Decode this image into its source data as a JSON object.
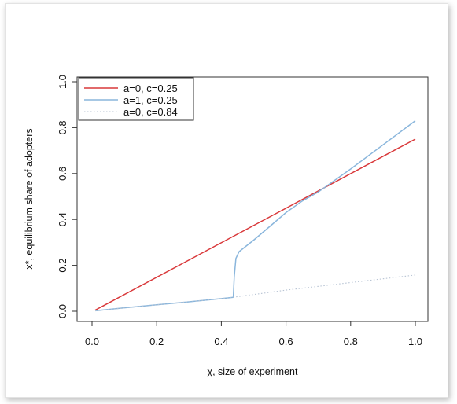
{
  "chart_data": {
    "type": "line",
    "title": "",
    "xlabel": "χ, size of experiment",
    "ylabel": "x*, equilibrium share of adopters",
    "xlim": [
      0,
      1.0
    ],
    "ylim": [
      0,
      1.0
    ],
    "x_ticks": [
      "0.0",
      "0.2",
      "0.4",
      "0.6",
      "0.8",
      "1.0"
    ],
    "y_ticks": [
      "0.0",
      "0.2",
      "0.4",
      "0.6",
      "0.8",
      "1.0"
    ],
    "grid": false,
    "legend_position": "top-left",
    "series": [
      {
        "name": "a=0, c=0.25",
        "color": "#d9383a",
        "style": "solid",
        "x": [
          0.01,
          1.0
        ],
        "y": [
          0.005,
          0.75
        ]
      },
      {
        "name": "a=1, c=0.25",
        "color": "#8ab6dc",
        "style": "solid",
        "x": [
          0.01,
          0.1,
          0.2,
          0.3,
          0.4,
          0.437,
          0.44,
          0.445,
          0.455,
          0.5,
          0.55,
          0.6,
          0.65,
          0.7,
          0.8,
          0.9,
          1.0
        ],
        "y": [
          0.002,
          0.015,
          0.028,
          0.041,
          0.055,
          0.061,
          0.15,
          0.23,
          0.26,
          0.31,
          0.37,
          0.43,
          0.48,
          0.52,
          0.62,
          0.725,
          0.83
        ]
      },
      {
        "name": "a=0, c=0.84",
        "color": "#b8c4d4",
        "style": "dotted",
        "x": [
          0.01,
          0.2,
          0.4,
          0.437,
          0.6,
          0.8,
          1.0
        ],
        "y": [
          0.002,
          0.028,
          0.055,
          0.061,
          0.092,
          0.125,
          0.158
        ]
      }
    ]
  }
}
